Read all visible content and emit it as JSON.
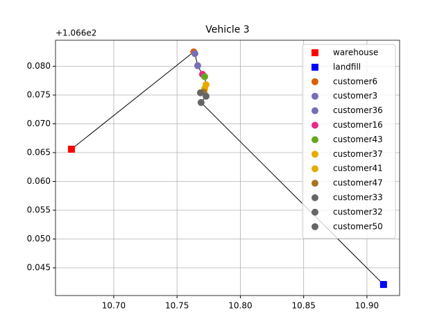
{
  "chart_data": {
    "type": "scatter",
    "title": "Vehicle 3",
    "y_offset_label": "+1.066e2",
    "xlim": [
      10.654,
      10.9258
    ],
    "ylim": [
      0.04018,
      0.08452
    ],
    "grid": true,
    "legend": "upper right",
    "route_color": "#000000",
    "xticks": [
      {
        "value": 10.7,
        "label": "10.70"
      },
      {
        "value": 10.75,
        "label": "10.75"
      },
      {
        "value": 10.8,
        "label": "10.80"
      },
      {
        "value": 10.85,
        "label": "10.85"
      },
      {
        "value": 10.9,
        "label": "10.90"
      }
    ],
    "yticks": [
      {
        "value": 0.045,
        "label": "0.045"
      },
      {
        "value": 0.05,
        "label": "0.050"
      },
      {
        "value": 0.055,
        "label": "0.055"
      },
      {
        "value": 0.06,
        "label": "0.060"
      },
      {
        "value": 0.065,
        "label": "0.065"
      },
      {
        "value": 0.07,
        "label": "0.070"
      },
      {
        "value": 0.075,
        "label": "0.075"
      },
      {
        "value": 0.08,
        "label": "0.080"
      }
    ],
    "series": [
      {
        "name": "warehouse",
        "color": "#ff0000",
        "marker": "square",
        "x": [
          10.6666
        ],
        "values": [
          0.0656
        ]
      },
      {
        "name": "landfill",
        "color": "#0000ff",
        "marker": "square",
        "x": [
          10.9131
        ],
        "values": [
          0.0421
        ]
      },
      {
        "name": "customer6",
        "color": "#d95f02",
        "marker": "circle",
        "x": [
          10.7632
        ],
        "values": [
          0.0825
        ]
      },
      {
        "name": "customer3",
        "color": "#7570b3",
        "marker": "circle",
        "x": [
          10.7641
        ],
        "values": [
          0.0822
        ]
      },
      {
        "name": "customer36",
        "color": "#7570b3",
        "marker": "circle",
        "x": [
          10.7663
        ],
        "values": [
          0.0801
        ]
      },
      {
        "name": "customer16",
        "color": "#e7298a",
        "marker": "circle",
        "x": [
          10.7701
        ],
        "values": [
          0.0786
        ]
      },
      {
        "name": "customer43",
        "color": "#66a61e",
        "marker": "circle",
        "x": [
          10.7718
        ],
        "values": [
          0.0782
        ]
      },
      {
        "name": "customer37",
        "color": "#e6ab02",
        "marker": "circle",
        "x": [
          10.7729
        ],
        "values": [
          0.0768
        ]
      },
      {
        "name": "customer41",
        "color": "#e6ab02",
        "marker": "circle",
        "x": [
          10.7718
        ],
        "values": [
          0.0761
        ]
      },
      {
        "name": "customer47",
        "color": "#a6761d",
        "marker": "circle",
        "x": [
          10.7712
        ],
        "values": [
          0.0755
        ]
      },
      {
        "name": "customer33",
        "color": "#666666",
        "marker": "circle",
        "x": [
          10.7685
        ],
        "values": [
          0.0754
        ]
      },
      {
        "name": "customer32",
        "color": "#666666",
        "marker": "circle",
        "x": [
          10.7729
        ],
        "values": [
          0.0748
        ]
      },
      {
        "name": "customer50",
        "color": "#666666",
        "marker": "circle",
        "x": [
          10.769
        ],
        "values": [
          0.0737
        ]
      }
    ]
  }
}
